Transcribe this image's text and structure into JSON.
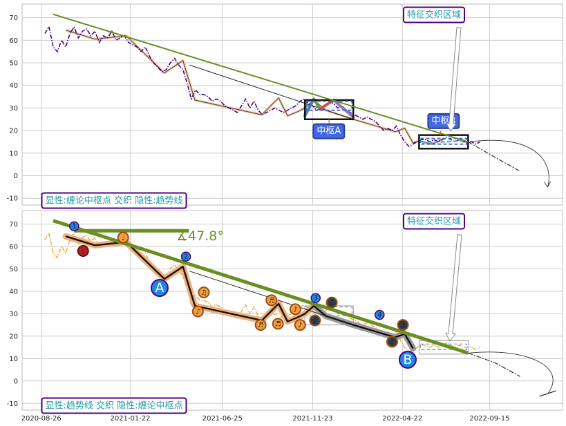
{
  "chart_data": [
    {
      "type": "line",
      "panel": "top",
      "legend_box": "显性:缠论中枢点 交织 隐性:趋势线",
      "corner_box": "特征交织区域",
      "xlim": [
        "2020-07-25",
        "2023-01-15"
      ],
      "ylim": [
        -13,
        76
      ],
      "yticks": [
        -10,
        0,
        10,
        20,
        30,
        40,
        50,
        60,
        70
      ],
      "grid": true,
      "series": [
        {
          "role": "price",
          "style": "dashdot",
          "color": "#4b0082",
          "x": [
            "2020-09-01",
            "2020-09-08",
            "2020-09-15",
            "2020-09-22",
            "2020-09-29",
            "2020-10-06",
            "2020-10-13",
            "2020-10-20",
            "2020-10-27",
            "2020-11-03",
            "2020-11-10",
            "2020-11-17",
            "2020-11-24",
            "2020-12-01",
            "2020-12-08",
            "2020-12-15",
            "2020-12-22",
            "2020-12-29",
            "2021-01-05",
            "2021-01-12",
            "2021-01-19",
            "2021-01-26",
            "2021-02-02",
            "2021-02-09",
            "2021-02-16",
            "2021-02-23",
            "2021-03-02",
            "2021-03-09",
            "2021-03-16",
            "2021-03-23",
            "2021-03-30",
            "2021-04-06",
            "2021-04-13",
            "2021-04-20",
            "2021-04-27",
            "2021-05-04",
            "2021-05-11",
            "2021-05-18",
            "2021-05-25",
            "2021-06-01",
            "2021-06-08",
            "2021-06-15",
            "2021-06-22",
            "2021-06-29",
            "2021-07-06",
            "2021-07-13",
            "2021-07-20",
            "2021-07-27",
            "2021-08-03",
            "2021-08-10",
            "2021-08-17",
            "2021-08-24",
            "2021-08-31",
            "2021-09-07",
            "2021-09-14",
            "2021-09-21",
            "2021-09-28",
            "2021-10-05",
            "2021-10-12",
            "2021-10-19",
            "2021-10-26",
            "2021-11-02",
            "2021-11-09",
            "2021-11-16",
            "2021-11-23",
            "2021-11-30",
            "2021-12-07",
            "2021-12-14",
            "2021-12-21",
            "2021-12-28",
            "2022-01-04",
            "2022-01-11",
            "2022-01-18",
            "2022-01-25",
            "2022-02-01",
            "2022-02-08",
            "2022-02-15",
            "2022-02-22",
            "2022-03-01",
            "2022-03-08",
            "2022-03-15",
            "2022-03-22",
            "2022-03-29",
            "2022-04-05",
            "2022-04-12",
            "2022-04-19",
            "2022-04-26",
            "2022-05-03",
            "2022-05-10",
            "2022-05-17",
            "2022-05-24",
            "2022-05-31",
            "2022-06-07",
            "2022-06-14",
            "2022-06-21",
            "2022-06-28",
            "2022-07-05",
            "2022-07-12",
            "2022-07-19",
            "2022-07-26",
            "2022-08-02",
            "2022-08-09",
            "2022-08-16",
            "2022-08-23",
            "2022-08-30"
          ],
          "y": [
            63,
            66,
            57,
            55,
            60,
            57,
            63,
            66,
            61,
            64,
            65,
            62,
            64,
            59,
            62,
            61,
            64,
            60,
            61,
            62,
            59,
            58,
            57,
            55,
            57,
            53,
            50,
            48,
            46,
            47,
            50,
            52,
            49,
            47,
            41,
            34,
            38,
            36,
            36,
            35,
            33,
            34,
            33,
            31,
            30,
            29,
            28,
            31,
            34,
            30,
            33,
            29,
            27,
            28,
            29,
            30,
            29,
            28,
            29,
            30,
            31,
            33,
            34,
            32,
            31,
            29,
            30,
            31,
            33,
            32,
            30,
            31,
            29,
            28,
            27,
            26,
            25,
            26,
            25,
            24,
            22,
            20,
            21,
            20,
            22,
            18,
            15,
            13,
            14,
            15,
            16,
            16,
            15,
            16,
            15,
            16,
            17,
            16,
            15,
            16,
            15,
            15,
            15,
            14,
            15
          ]
        },
        {
          "role": "zigzag",
          "x": [
            "2020-10-06",
            "2020-11-24",
            "2021-01-15",
            "2021-03-20",
            "2021-04-20",
            "2021-05-10",
            "2021-08-30",
            "2021-09-27",
            "2021-10-12",
            "2021-10-30",
            "2021-11-10",
            "2021-11-25",
            "2021-12-15",
            "2022-01-30",
            "2022-04-10",
            "2022-04-26",
            "2022-05-10",
            "2022-05-20",
            "2022-06-10",
            "2022-07-01"
          ],
          "y": [
            64.5,
            60.5,
            62,
            45.5,
            51,
            33.5,
            27,
            34.5,
            26.5,
            28.5,
            30,
            33.5,
            29,
            25,
            19.5,
            21,
            14.5,
            15.5,
            14,
            16.5
          ]
        },
        {
          "role": "trend",
          "x": [
            "2020-09-15",
            "2022-08-10"
          ],
          "y": [
            71.5,
            15
          ]
        },
        {
          "role": "forecast",
          "x": [
            "2022-08-10",
            "2022-09-25",
            "2022-11-05"
          ],
          "y": [
            15,
            8,
            2
          ]
        }
      ],
      "centers": [
        {
          "label": "中枢A",
          "x": [
            "2021-11-10",
            "2022-01-30"
          ],
          "y": [
            25,
            33.5
          ],
          "inner_y": [
            29,
            33
          ]
        },
        {
          "label": "中枢B",
          "x": [
            "2022-05-20",
            "2022-08-10"
          ],
          "y": [
            12,
            18
          ],
          "inner_y": [
            14,
            16.5
          ]
        }
      ]
    },
    {
      "type": "line",
      "panel": "bottom",
      "legend_box": "显性:趋势线 交织 隐性:缠论中枢点",
      "corner_box": "特征交织区域",
      "angle_label": "∡47.8°",
      "xlim": [
        "2020-07-25",
        "2023-01-15"
      ],
      "ylim": [
        -13,
        76
      ],
      "yticks": [
        -10,
        0,
        10,
        20,
        30,
        40,
        50,
        60,
        70
      ],
      "xticks": [
        "2020-08-26",
        "2021-01-22",
        "2021-06-25",
        "2021-11-23",
        "2022-04-22",
        "2022-09-15"
      ],
      "grid": true,
      "series": [
        {
          "role": "price",
          "style": "dashdot",
          "color": "#f0a830",
          "x": [
            "2020-09-01",
            "2020-09-08",
            "2020-09-15",
            "2020-09-22",
            "2020-09-29",
            "2020-10-06",
            "2020-10-13",
            "2020-10-20",
            "2020-10-27",
            "2020-11-03",
            "2020-11-10",
            "2020-11-17",
            "2020-11-24",
            "2020-12-01",
            "2020-12-08",
            "2020-12-15",
            "2020-12-22",
            "2020-12-29",
            "2021-01-05",
            "2021-01-12",
            "2021-01-19",
            "2021-01-26",
            "2021-02-02",
            "2021-02-09",
            "2021-02-16",
            "2021-02-23",
            "2021-03-02",
            "2021-03-09",
            "2021-03-16",
            "2021-03-23",
            "2021-03-30",
            "2021-04-06",
            "2021-04-13",
            "2021-04-20",
            "2021-04-27",
            "2021-05-04",
            "2021-05-11",
            "2021-05-18",
            "2021-05-25",
            "2021-06-01",
            "2021-06-08",
            "2021-06-15",
            "2021-06-22",
            "2021-06-29",
            "2021-07-06",
            "2021-07-13",
            "2021-07-20",
            "2021-07-27",
            "2021-08-03",
            "2021-08-10",
            "2021-08-17",
            "2021-08-24",
            "2021-08-31",
            "2021-09-07",
            "2021-09-14",
            "2021-09-21",
            "2021-09-28",
            "2021-10-05",
            "2021-10-12",
            "2021-10-19",
            "2021-10-26",
            "2021-11-02",
            "2021-11-09",
            "2021-11-16",
            "2021-11-23",
            "2021-11-30",
            "2021-12-07",
            "2021-12-14",
            "2021-12-21",
            "2021-12-28",
            "2022-01-04",
            "2022-01-11",
            "2022-01-18",
            "2022-01-25",
            "2022-02-01",
            "2022-02-08",
            "2022-02-15",
            "2022-02-22",
            "2022-03-01",
            "2022-03-08",
            "2022-03-15",
            "2022-03-22",
            "2022-03-29",
            "2022-04-05",
            "2022-04-12",
            "2022-04-19",
            "2022-04-26",
            "2022-05-03",
            "2022-05-10",
            "2022-05-17",
            "2022-05-24",
            "2022-05-31",
            "2022-06-07",
            "2022-06-14",
            "2022-06-21",
            "2022-06-28",
            "2022-07-05",
            "2022-07-12",
            "2022-07-19",
            "2022-07-26",
            "2022-08-02",
            "2022-08-09",
            "2022-08-16",
            "2022-08-23",
            "2022-08-30"
          ],
          "y": [
            63,
            66,
            57,
            55,
            60,
            57,
            63,
            66,
            61,
            64,
            65,
            62,
            64,
            59,
            62,
            61,
            64,
            60,
            61,
            62,
            59,
            58,
            57,
            55,
            57,
            53,
            50,
            48,
            46,
            47,
            50,
            52,
            49,
            47,
            41,
            34,
            38,
            36,
            36,
            35,
            33,
            34,
            33,
            31,
            30,
            29,
            28,
            31,
            34,
            30,
            33,
            29,
            27,
            28,
            29,
            30,
            29,
            28,
            29,
            30,
            31,
            33,
            34,
            32,
            31,
            29,
            30,
            31,
            33,
            32,
            30,
            31,
            29,
            28,
            27,
            26,
            25,
            26,
            25,
            24,
            22,
            20,
            21,
            20,
            22,
            18,
            15,
            13,
            14,
            15,
            16,
            16,
            15,
            16,
            15,
            16,
            17,
            16,
            15,
            16,
            15,
            15,
            15,
            14,
            15
          ]
        },
        {
          "role": "zigzag",
          "x": [
            "2020-10-06",
            "2020-11-24",
            "2021-01-15",
            "2021-03-20",
            "2021-04-20",
            "2021-05-10",
            "2021-08-30",
            "2021-09-27",
            "2021-10-12",
            "2021-10-30",
            "2021-11-10",
            "2021-11-25",
            "2021-12-15",
            "2022-01-30",
            "2022-04-10",
            "2022-04-26",
            "2022-05-10"
          ],
          "y": [
            64.5,
            60.5,
            62,
            45.5,
            51,
            33.5,
            27,
            34.5,
            26.5,
            28.5,
            30,
            33.5,
            29,
            25,
            19.5,
            21,
            14.5
          ]
        },
        {
          "role": "trend",
          "x": [
            "2020-09-15",
            "2022-08-10"
          ],
          "y": [
            71.5,
            12.5
          ]
        },
        {
          "role": "forecast",
          "x": [
            "2022-08-10",
            "2022-09-25",
            "2022-11-05"
          ],
          "y": [
            12.5,
            8,
            2
          ]
        }
      ],
      "trend_pivots": [
        {
          "label": "1",
          "x": "2020-10-20",
          "y": 69
        },
        {
          "label": "2",
          "x": "2021-04-25",
          "y": 55.5
        },
        {
          "label": "3",
          "x": "2021-11-28",
          "y": 37
        },
        {
          "label": "4",
          "x": "2022-03-15",
          "y": 29.5
        }
      ],
      "big_markers": [
        {
          "label": "A",
          "x": "2021-03-12",
          "y": 41.5
        },
        {
          "label": "B",
          "x": "2022-05-01",
          "y": 9.5
        }
      ],
      "note_markers": [
        {
          "symbol": "♩",
          "x": "2020-11-04",
          "y": 58,
          "kind": "red"
        },
        {
          "symbol": "♩",
          "x": "2021-01-10",
          "y": 64,
          "kind": "orange"
        },
        {
          "symbol": "♪",
          "x": "2021-05-15",
          "y": 31,
          "kind": "orange"
        },
        {
          "symbol": "♫",
          "x": "2021-05-25",
          "y": 39.5,
          "kind": "orange"
        },
        {
          "symbol": "♬",
          "x": "2021-08-28",
          "y": 25,
          "kind": "orange"
        },
        {
          "symbol": "♬",
          "x": "2021-09-15",
          "y": 36,
          "kind": "orange"
        },
        {
          "symbol": "♬",
          "x": "2021-09-26",
          "y": 25.5,
          "kind": "orange"
        },
        {
          "symbol": "♪",
          "x": "2021-10-25",
          "y": 32,
          "kind": "orange"
        },
        {
          "symbol": "♪",
          "x": "2021-11-02",
          "y": 25,
          "kind": "orange"
        },
        {
          "symbol": "♪",
          "x": "2021-11-27",
          "y": 27,
          "kind": "dark"
        },
        {
          "symbol": "♪",
          "x": "2021-12-25",
          "y": 35,
          "kind": "dark"
        },
        {
          "symbol": "♪",
          "x": "2022-04-05",
          "y": 17.5,
          "kind": "dark"
        },
        {
          "symbol": "♫",
          "x": "2022-04-23",
          "y": 25,
          "kind": "dark"
        }
      ],
      "centers": [
        {
          "x": [
            "2021-11-10",
            "2022-01-30"
          ],
          "y": [
            25,
            33.5
          ],
          "inner_y": [
            29,
            33
          ]
        },
        {
          "x": [
            "2022-05-20",
            "2022-08-10"
          ],
          "y": [
            12,
            18
          ],
          "inner_y": [
            14,
            16.5
          ]
        }
      ]
    }
  ]
}
